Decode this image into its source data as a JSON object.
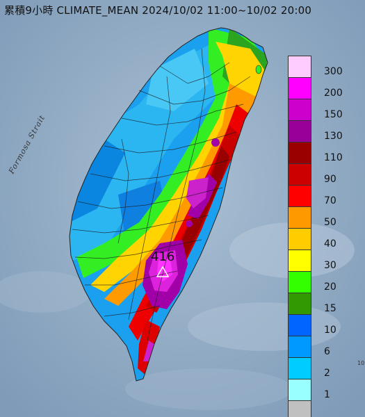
{
  "title": "累積9小時 CLIMATE_MEAN 2024/10/02 11:00~10/02 20:00",
  "strait_label": "Formosa Strait",
  "max_value": "416",
  "edge_label": "10",
  "legend": [
    {
      "label": "300",
      "color": "#ffccff"
    },
    {
      "label": "200",
      "color": "#ff00ff"
    },
    {
      "label": "150",
      "color": "#cc00cc"
    },
    {
      "label": "130",
      "color": "#990099"
    },
    {
      "label": "110",
      "color": "#990000"
    },
    {
      "label": "90",
      "color": "#cc0000"
    },
    {
      "label": "70",
      "color": "#ff0000"
    },
    {
      "label": "50",
      "color": "#ff9900"
    },
    {
      "label": "40",
      "color": "#ffcc00"
    },
    {
      "label": "30",
      "color": "#ffff00"
    },
    {
      "label": "20",
      "color": "#33ff00"
    },
    {
      "label": "15",
      "color": "#339900"
    },
    {
      "label": "10",
      "color": "#0066ff"
    },
    {
      "label": "6",
      "color": "#0099ff"
    },
    {
      "label": "2",
      "color": "#00ccff"
    },
    {
      "label": "1",
      "color": "#99ffff"
    },
    {
      "label": "",
      "color": "#c0c0c0"
    }
  ]
}
